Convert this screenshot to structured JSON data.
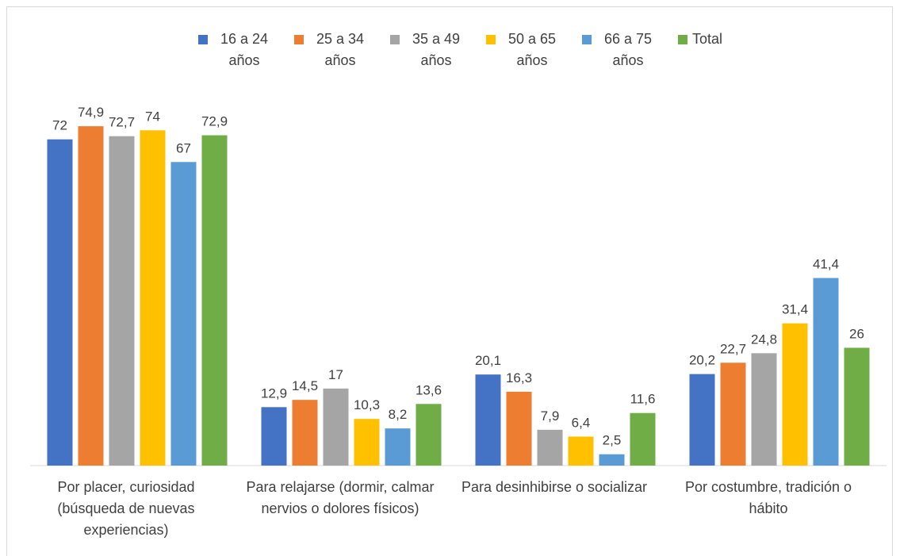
{
  "chart_data": {
    "type": "bar",
    "categories": [
      "Por placer, curiosidad (búsqueda de nuevas experiencias)",
      "Para relajarse (dormir, calmar nervios o dolores físicos)",
      "Para desinhibirse o socializar",
      "Por costumbre, tradición o hábito"
    ],
    "ylim": [
      0,
      80
    ],
    "legend": "top",
    "series": [
      {
        "name": "16 a 24 años",
        "color": "#4472c4",
        "values": [
          72,
          12.9,
          20.1,
          20.2
        ],
        "value_labels": [
          "72",
          "12,9",
          "20,1",
          "20,2"
        ]
      },
      {
        "name": "25 a 34 años",
        "color": "#ed7d31",
        "values": [
          74.9,
          14.5,
          16.3,
          22.7
        ],
        "value_labels": [
          "74,9",
          "14,5",
          "16,3",
          "22,7"
        ]
      },
      {
        "name": "35 a 49 años",
        "color": "#a5a5a5",
        "values": [
          72.7,
          17,
          7.9,
          24.8
        ],
        "value_labels": [
          "72,7",
          "17",
          "7,9",
          "24,8"
        ]
      },
      {
        "name": "50 a 65 años",
        "color": "#ffc000",
        "values": [
          74,
          10.3,
          6.4,
          31.4
        ],
        "value_labels": [
          "74",
          "10,3",
          "6,4",
          "31,4"
        ]
      },
      {
        "name": "66 a 75 años",
        "color": "#5b9bd5",
        "values": [
          67,
          8.2,
          2.5,
          41.4
        ],
        "value_labels": [
          "67",
          "8,2",
          "2,5",
          "41,4"
        ]
      },
      {
        "name": "Total",
        "color": "#70ad47",
        "values": [
          72.9,
          13.6,
          11.6,
          26
        ],
        "value_labels": [
          "72,9",
          "13,6",
          "11,6",
          "26"
        ]
      }
    ]
  }
}
